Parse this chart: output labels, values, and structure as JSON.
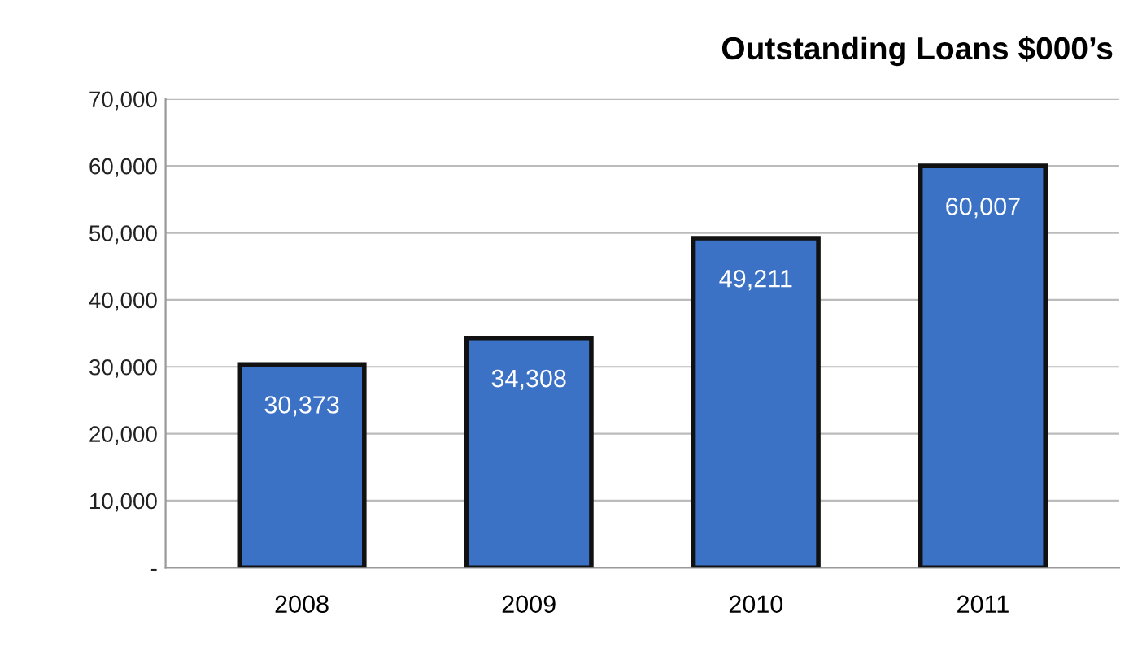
{
  "chart_data": {
    "type": "bar",
    "title": "Outstanding Loans $000’s",
    "categories": [
      "2008",
      "2009",
      "2010",
      "2011"
    ],
    "values": [
      30373,
      34308,
      49211,
      60007
    ],
    "value_labels": [
      "30,373",
      "34,308",
      "49,211",
      "60,007"
    ],
    "color": "#3b72c6",
    "ylim": [
      0,
      70000
    ],
    "yticks": [
      {
        "value": 0,
        "label": "-"
      },
      {
        "value": 10000,
        "label": "10,000"
      },
      {
        "value": 20000,
        "label": "20,000"
      },
      {
        "value": 30000,
        "label": "30,000"
      },
      {
        "value": 40000,
        "label": "40,000"
      },
      {
        "value": 50000,
        "label": "50,000"
      },
      {
        "value": 60000,
        "label": "60,000"
      },
      {
        "value": 70000,
        "label": "70,000"
      }
    ],
    "grid": "y",
    "legend": false
  }
}
